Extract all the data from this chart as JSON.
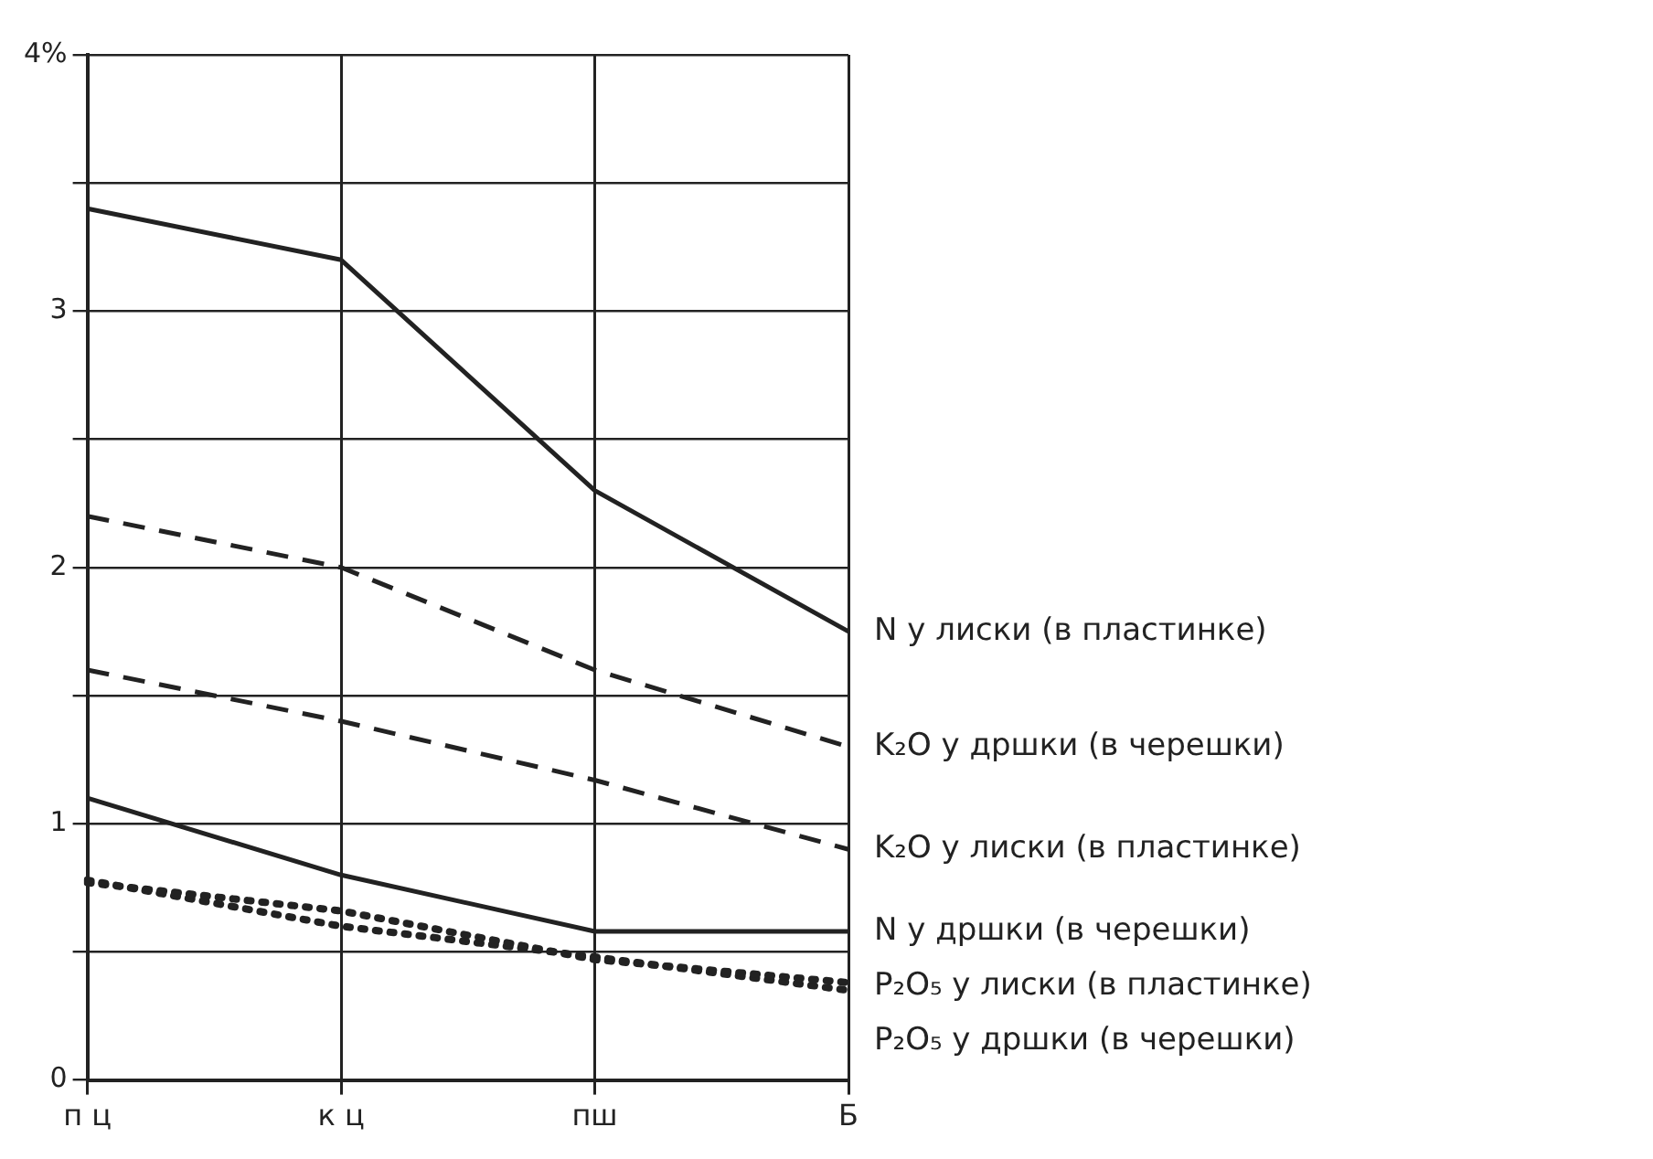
{
  "chart_data": {
    "type": "line",
    "categories": [
      "п ц",
      "к ц",
      "пш",
      "Б"
    ],
    "ylim": [
      0,
      4
    ],
    "yticks": [
      0,
      {
        "value": 0.5,
        "label": null
      },
      1,
      {
        "value": 1.5,
        "label": null
      },
      2,
      {
        "value": 2.5,
        "label": null
      },
      3,
      {
        "value": 3.5,
        "label": null
      },
      {
        "value": 4,
        "label": "4%"
      }
    ],
    "grid": true,
    "marker": "none",
    "series": [
      {
        "name": "N у лиски (в пластинке)",
        "color": "#222222",
        "line_style": "solid",
        "values": [
          3.4,
          3.2,
          2.3,
          1.75
        ]
      },
      {
        "name": "K₂O у дршки (в черешки)",
        "color": "#222222",
        "line_style": "dashed",
        "values": [
          2.2,
          2.0,
          1.6,
          1.3
        ]
      },
      {
        "name": "K₂O у лиски (в пластинке)",
        "color": "#222222",
        "line_style": "dashed",
        "values": [
          1.6,
          1.4,
          1.17,
          0.9
        ]
      },
      {
        "name": "N у дршки (в черешки)",
        "color": "#222222",
        "line_style": "solid",
        "values": [
          1.1,
          0.8,
          0.58,
          0.58
        ]
      },
      {
        "name": "P₂O₅ у лиски (в пластинке)",
        "color": "#222222",
        "line_style": "dotted",
        "values": [
          0.77,
          0.66,
          0.47,
          0.38
        ]
      },
      {
        "name": "P₂O₅ у дршки (в черешки)",
        "color": "#222222",
        "line_style": "dotted",
        "values": [
          0.78,
          0.6,
          0.48,
          0.35
        ]
      }
    ]
  }
}
